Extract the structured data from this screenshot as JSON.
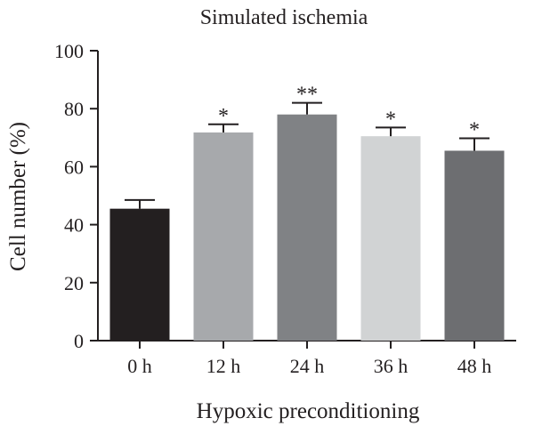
{
  "chart_data": {
    "type": "bar",
    "title": "Simulated ischemia",
    "xlabel": "Hypoxic preconditioning",
    "ylabel": "Cell number (%)",
    "ylim": [
      0,
      100
    ],
    "yticks": [
      "0",
      "20",
      "40",
      "60",
      "80",
      "100"
    ],
    "categories": [
      "0 h",
      "12 h",
      "24 h",
      "36 h",
      "48 h"
    ],
    "values": [
      45.5,
      71.8,
      78.0,
      70.5,
      65.5
    ],
    "errors": [
      3.0,
      2.8,
      4.0,
      3.0,
      4.3
    ],
    "significance": [
      "",
      "*",
      "**",
      "*",
      "*"
    ],
    "colors": [
      "#231f20",
      "#a7a9ac",
      "#808285",
      "#d1d3d4",
      "#6d6e71"
    ],
    "grid": false,
    "legend": "none"
  }
}
